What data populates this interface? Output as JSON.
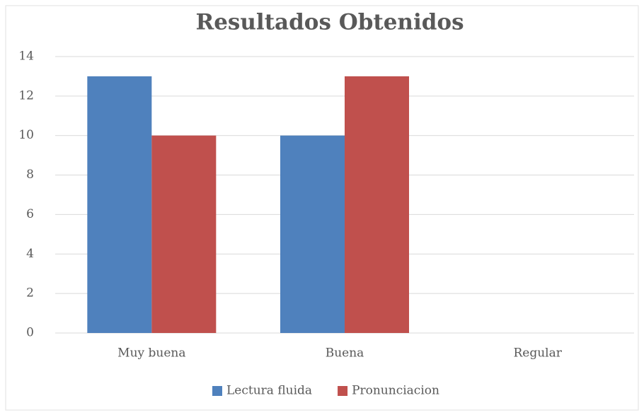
{
  "chart_data": {
    "type": "bar",
    "title": "Resultados Obtenidos",
    "categories": [
      "Muy buena",
      "Buena",
      "Regular"
    ],
    "series": [
      {
        "name": "Lectura fluida",
        "color": "#4f81bd",
        "values": [
          13,
          10,
          0
        ]
      },
      {
        "name": "Pronunciacion",
        "color": "#c0504d",
        "values": [
          10,
          13,
          0
        ]
      }
    ],
    "ylim": [
      0,
      14
    ],
    "yticks": [
      0,
      2,
      4,
      6,
      8,
      10,
      12,
      14
    ],
    "grid": true,
    "legend": "bottom"
  }
}
